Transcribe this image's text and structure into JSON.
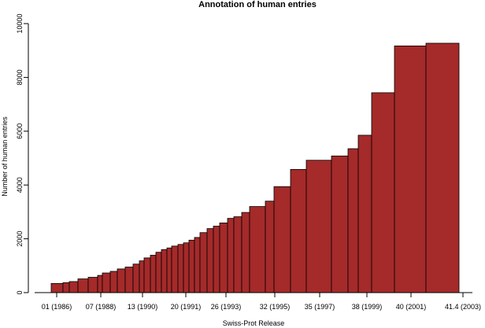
{
  "chart_data": {
    "type": "bar",
    "title": "Annotation of human entries",
    "xlabel": "Swiss-Prot Release",
    "ylabel": "Number of human entries",
    "ylim": [
      0,
      10000
    ],
    "yticks": [
      "0",
      "2000",
      "4000",
      "6000",
      "8000",
      "10000"
    ],
    "xtick_labels": [
      "01 (1986)",
      "07 (1988)",
      "13 (1990)",
      "20 (1991)",
      "26 (1993)",
      "32 (1995)",
      "35 (1997)",
      "38 (1999)",
      "40 (2001)",
      "41.4 (2003)"
    ],
    "bar_color": "#a52a2a",
    "grid": false,
    "bars": [
      {
        "release": 1,
        "value": 340
      },
      {
        "release": 2,
        "value": 370
      },
      {
        "release": 3,
        "value": 410
      },
      {
        "release": 4,
        "value": 510
      },
      {
        "release": 5,
        "value": 570
      },
      {
        "release": 6,
        "value": 640
      },
      {
        "release": 7,
        "value": 730
      },
      {
        "release": 8,
        "value": 790
      },
      {
        "release": 9,
        "value": 880
      },
      {
        "release": 10,
        "value": 950
      },
      {
        "release": 11,
        "value": 1060
      },
      {
        "release": 12,
        "value": 1180
      },
      {
        "release": 13,
        "value": 1290
      },
      {
        "release": 14,
        "value": 1390
      },
      {
        "release": 15,
        "value": 1500
      },
      {
        "release": 16,
        "value": 1600
      },
      {
        "release": 17,
        "value": 1660
      },
      {
        "release": 18,
        "value": 1730
      },
      {
        "release": 19,
        "value": 1790
      },
      {
        "release": 20,
        "value": 1850
      },
      {
        "release": 21,
        "value": 1950
      },
      {
        "release": 22,
        "value": 2050
      },
      {
        "release": 23,
        "value": 2230
      },
      {
        "release": 24,
        "value": 2380
      },
      {
        "release": 25,
        "value": 2470
      },
      {
        "release": 26,
        "value": 2590
      },
      {
        "release": 27,
        "value": 2760
      },
      {
        "release": 28,
        "value": 2820
      },
      {
        "release": 29,
        "value": 2980
      },
      {
        "release": 31,
        "value": 3200
      },
      {
        "release": 32,
        "value": 3400
      },
      {
        "release": 33,
        "value": 3940
      },
      {
        "release": 35,
        "value": 4580
      },
      {
        "release": 36,
        "value": 4920
      },
      {
        "release": 37,
        "value": 5080
      },
      {
        "release": 38,
        "value": 5350
      },
      {
        "release": 39,
        "value": 5850
      },
      {
        "release": 40,
        "value": 7430
      },
      {
        "release": 41,
        "value": 9170
      },
      {
        "release": 41.4,
        "value": 9270
      }
    ]
  }
}
